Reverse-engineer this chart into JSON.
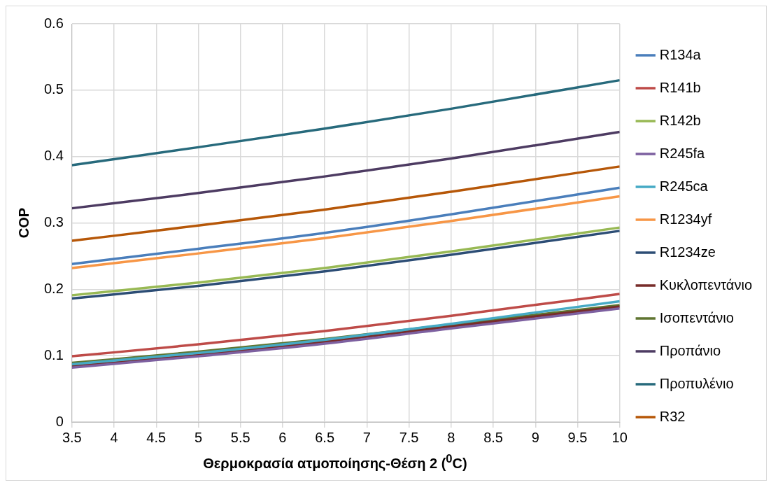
{
  "chart_data": {
    "type": "line",
    "ylabel": "COP",
    "xlabel": "Θερμοκρασία ατμοποίησης-Θέση 2 ($^{0}$C)",
    "x": [
      3.5,
      5,
      6.5,
      8,
      10
    ],
    "xlim": [
      3.5,
      10
    ],
    "xticks": [
      3.5,
      4,
      4.5,
      5,
      5.5,
      6,
      6.5,
      7,
      7.5,
      8,
      8.5,
      9,
      9.5,
      10
    ],
    "ylim": [
      0,
      0.6
    ],
    "yticks": [
      0,
      0.1,
      0.2,
      0.3,
      0.4,
      0.5,
      0.6
    ],
    "grid": true,
    "legend": "right",
    "marker": "none",
    "line_style": "solid",
    "series": [
      {
        "name": "R134a",
        "color": "#4a7ebb",
        "values": [
          0.238,
          0.261,
          0.285,
          0.313,
          0.353
        ]
      },
      {
        "name": "R141b",
        "color": "#be4b48",
        "values": [
          0.099,
          0.117,
          0.137,
          0.16,
          0.193
        ]
      },
      {
        "name": "R142b",
        "color": "#98b954",
        "values": [
          0.191,
          0.21,
          0.232,
          0.257,
          0.293
        ]
      },
      {
        "name": "R245fa",
        "color": "#7d60a0",
        "values": [
          0.082,
          0.099,
          0.118,
          0.141,
          0.171
        ]
      },
      {
        "name": "R245ca",
        "color": "#46aac5",
        "values": [
          0.087,
          0.104,
          0.124,
          0.148,
          0.182
        ]
      },
      {
        "name": "R1234yf",
        "color": "#f79646",
        "values": [
          0.232,
          0.254,
          0.277,
          0.303,
          0.34
        ]
      },
      {
        "name": "R1234ze",
        "color": "#2c4d75",
        "values": [
          0.186,
          0.205,
          0.227,
          0.252,
          0.288
        ]
      },
      {
        "name": "Κυκλοπεντάνιο",
        "color": "#772c2a",
        "values": [
          0.084,
          0.101,
          0.121,
          0.144,
          0.174
        ]
      },
      {
        "name": "Ισοπεντάνιο",
        "color": "#5f7530",
        "values": [
          0.089,
          0.106,
          0.125,
          0.147,
          0.176
        ]
      },
      {
        "name": "Προπάνιο",
        "color": "#4d3b62",
        "values": [
          0.322,
          0.345,
          0.37,
          0.397,
          0.437
        ]
      },
      {
        "name": "Προπυλένιο",
        "color": "#276a7c",
        "values": [
          0.387,
          0.414,
          0.442,
          0.472,
          0.515
        ]
      },
      {
        "name": "R32",
        "color": "#b65708",
        "values": [
          0.273,
          0.296,
          0.32,
          0.347,
          0.385
        ]
      }
    ]
  }
}
